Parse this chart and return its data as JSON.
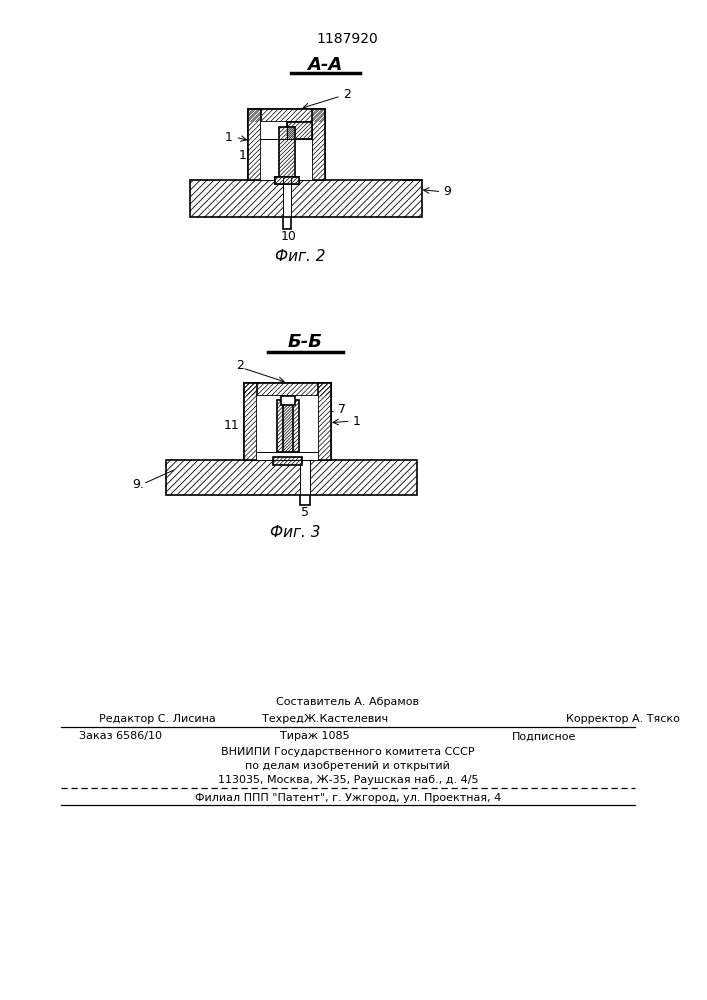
{
  "patent_number": "1187920",
  "section_aa": "А-А",
  "section_bb": "Б-Б",
  "fig2_label": "Фиг. 2",
  "fig3_label": "Фиг. 3",
  "footer_line1": "Составитель А. Абрамов",
  "footer_line2a": "Редактор С. Лисина",
  "footer_line2b": "ТехредЖ.Кастелевич",
  "footer_line2c": "Корректор А. Тяско",
  "footer_line3a": "Заказ 6586/10",
  "footer_line3b": "Тираж 1085",
  "footer_line3c": "Подписное",
  "footer_line4": "ВНИИПИ Государственного комитета СССР",
  "footer_line5": "по делам изобретений и открытий",
  "footer_line6": "113035, Москва, Ж-35, Раушская наб., д. 4/5",
  "footer_line7": "Филиал ППП \"Патент\", г. Ужгород, ул. Проектная, 4",
  "bg_color": "#ffffff",
  "line_color": "#000000"
}
